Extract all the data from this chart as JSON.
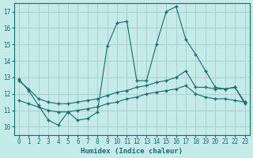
{
  "xlabel": "Humidex (Indice chaleur)",
  "bg_color": "#c5eaea",
  "line_color": "#1a6b6b",
  "grid_color": "#a8cccc",
  "xlim": [
    -0.5,
    23.5
  ],
  "ylim": [
    9.5,
    17.5
  ],
  "yticks": [
    10,
    11,
    12,
    13,
    14,
    15,
    16,
    17
  ],
  "xticks": [
    0,
    1,
    2,
    3,
    4,
    5,
    6,
    7,
    8,
    9,
    10,
    11,
    12,
    13,
    14,
    15,
    16,
    17,
    18,
    19,
    20,
    21,
    22,
    23
  ],
  "line1_x": [
    0,
    1,
    2,
    3,
    4,
    5,
    6,
    7,
    8,
    9,
    10,
    11,
    12,
    13,
    14,
    15,
    16,
    17,
    18,
    19,
    20,
    21,
    22,
    23
  ],
  "line1_y": [
    12.9,
    12.2,
    11.3,
    10.4,
    10.1,
    10.9,
    10.4,
    10.5,
    10.9,
    14.9,
    16.3,
    16.4,
    12.8,
    12.8,
    15.0,
    17.0,
    17.3,
    15.3,
    14.4,
    13.4,
    12.4,
    12.3,
    12.4,
    11.4
  ],
  "line2_x": [
    0,
    1,
    2,
    3,
    4,
    5,
    6,
    7,
    8,
    9,
    10,
    11,
    12,
    13,
    14,
    15,
    16,
    17,
    18,
    19,
    20,
    21,
    22,
    23
  ],
  "line2_y": [
    12.8,
    12.3,
    11.7,
    11.5,
    11.4,
    11.4,
    11.5,
    11.6,
    11.7,
    11.9,
    12.1,
    12.2,
    12.4,
    12.5,
    12.7,
    12.8,
    13.0,
    13.4,
    12.4,
    12.4,
    12.3,
    12.3,
    12.4,
    11.5
  ],
  "line3_x": [
    0,
    1,
    2,
    3,
    4,
    5,
    6,
    7,
    8,
    9,
    10,
    11,
    12,
    13,
    14,
    15,
    16,
    17,
    18,
    19,
    20,
    21,
    22,
    23
  ],
  "line3_y": [
    11.6,
    11.4,
    11.2,
    11.0,
    10.9,
    10.9,
    11.0,
    11.1,
    11.2,
    11.4,
    11.5,
    11.7,
    11.8,
    12.0,
    12.1,
    12.2,
    12.3,
    12.5,
    12.0,
    11.8,
    11.7,
    11.7,
    11.6,
    11.5
  ]
}
